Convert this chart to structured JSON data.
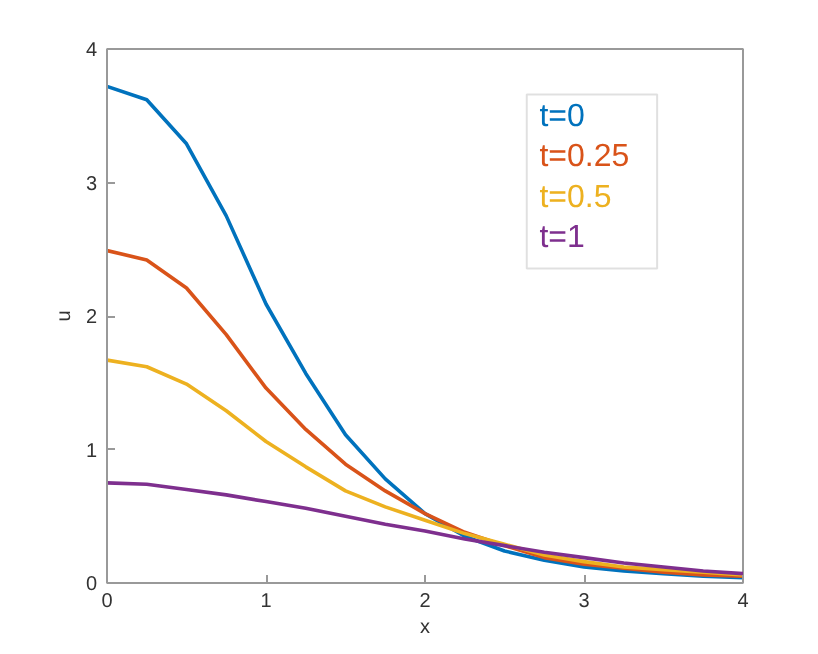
{
  "chart_data": {
    "type": "line",
    "xlabel": "x",
    "ylabel": "u",
    "x": [
      0,
      0.25,
      0.5,
      0.75,
      1,
      1.25,
      1.5,
      1.75,
      2,
      2.25,
      2.5,
      2.75,
      3,
      3.25,
      3.5,
      3.75,
      4
    ],
    "series": [
      {
        "name": "t=0",
        "color": "#0072bd",
        "values": [
          3.72,
          3.62,
          3.29,
          2.75,
          2.09,
          1.57,
          1.11,
          0.78,
          0.52,
          0.35,
          0.24,
          0.17,
          0.12,
          0.09,
          0.07,
          0.05,
          0.04
        ]
      },
      {
        "name": "t=0.25",
        "color": "#d95319",
        "values": [
          2.49,
          2.42,
          2.21,
          1.86,
          1.46,
          1.15,
          0.89,
          0.69,
          0.52,
          0.38,
          0.28,
          0.19,
          0.14,
          0.11,
          0.08,
          0.06,
          0.05
        ]
      },
      {
        "name": "t=0.5",
        "color": "#edb120",
        "values": [
          1.67,
          1.62,
          1.49,
          1.29,
          1.06,
          0.87,
          0.69,
          0.57,
          0.47,
          0.37,
          0.29,
          0.21,
          0.16,
          0.12,
          0.1,
          0.08,
          0.06
        ]
      },
      {
        "name": "t=1",
        "color": "#7e2f8e",
        "values": [
          0.75,
          0.74,
          0.7,
          0.66,
          0.61,
          0.56,
          0.5,
          0.44,
          0.39,
          0.33,
          0.28,
          0.23,
          0.19,
          0.15,
          0.12,
          0.09,
          0.07
        ]
      }
    ],
    "xlim": [
      0,
      4
    ],
    "ylim": [
      0,
      4
    ],
    "xticks": [
      0,
      1,
      2,
      3,
      4
    ],
    "yticks": [
      0,
      1,
      2,
      3,
      4
    ],
    "legend": "top right"
  }
}
